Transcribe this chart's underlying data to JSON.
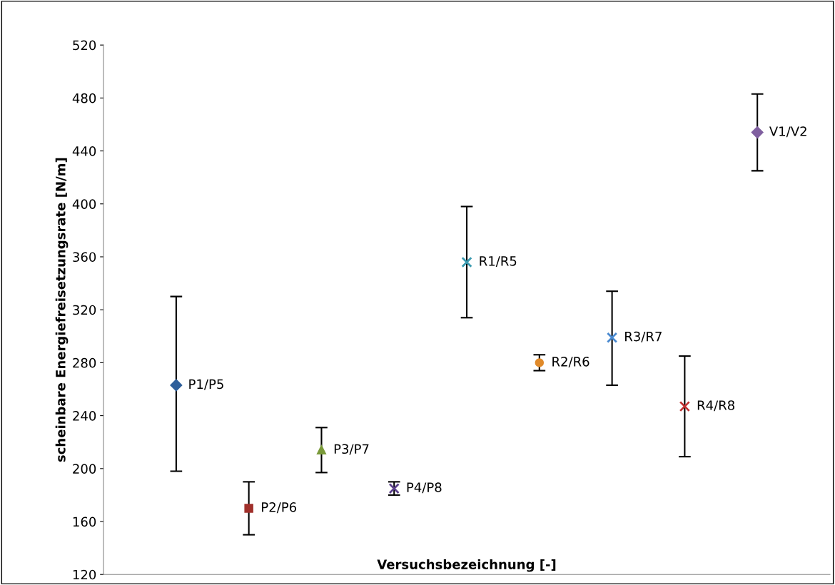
{
  "chart_data": {
    "type": "scatter",
    "xlabel": "Versuchsbezeichnung [-]",
    "ylabel": "scheinbare Energiefreisetzungsrate [N/m]",
    "categories": [
      null,
      null,
      null,
      null,
      null,
      null,
      null,
      null,
      null
    ],
    "ylim": [
      120,
      520
    ],
    "yticks": [
      120,
      160,
      200,
      240,
      280,
      320,
      360,
      400,
      440,
      480,
      520
    ],
    "grid": false,
    "legend": false,
    "tick_labels": "y",
    "series": [
      {
        "name": "P1/P5",
        "color": "#2e5f9a",
        "marker": "diamond",
        "values": [
          263,
          null,
          null,
          null,
          null,
          null,
          null,
          null,
          null
        ],
        "errors": [
          [
            198,
            330
          ],
          null,
          null,
          null,
          null,
          null,
          null,
          null,
          null
        ]
      },
      {
        "name": "P2/P6",
        "color": "#a0302b",
        "marker": "square",
        "values": [
          null,
          170,
          null,
          null,
          null,
          null,
          null,
          null,
          null
        ],
        "errors": [
          null,
          [
            150,
            190
          ],
          null,
          null,
          null,
          null,
          null,
          null,
          null
        ]
      },
      {
        "name": "P3/P7",
        "color": "#7a9a3a",
        "marker": "triangle",
        "values": [
          null,
          null,
          214,
          null,
          null,
          null,
          null,
          null,
          null
        ],
        "errors": [
          null,
          null,
          [
            197,
            231
          ],
          null,
          null,
          null,
          null,
          null,
          null
        ]
      },
      {
        "name": "P4/P8",
        "color": "#5a3f8a",
        "marker": "cross",
        "values": [
          null,
          null,
          null,
          185,
          null,
          null,
          null,
          null,
          null
        ],
        "errors": [
          null,
          null,
          null,
          [
            180,
            190
          ],
          null,
          null,
          null,
          null,
          null
        ]
      },
      {
        "name": "R1/R5",
        "color": "#3a9ab0",
        "marker": "cross",
        "values": [
          null,
          null,
          null,
          null,
          356,
          null,
          null,
          null,
          null
        ],
        "errors": [
          null,
          null,
          null,
          null,
          [
            314,
            398
          ],
          null,
          null,
          null,
          null
        ]
      },
      {
        "name": "R2/R6",
        "color": "#e08a2a",
        "marker": "circle",
        "values": [
          null,
          null,
          null,
          null,
          null,
          280,
          null,
          null,
          null
        ],
        "errors": [
          null,
          null,
          null,
          null,
          null,
          [
            274,
            286
          ],
          null,
          null,
          null
        ]
      },
      {
        "name": "R3/R7",
        "color": "#4a8ad0",
        "marker": "cross",
        "values": [
          null,
          null,
          null,
          null,
          null,
          null,
          299,
          null,
          null
        ],
        "errors": [
          null,
          null,
          null,
          null,
          null,
          null,
          [
            263,
            334
          ],
          null,
          null
        ]
      },
      {
        "name": "R4/R8",
        "color": "#c03030",
        "marker": "cross",
        "values": [
          null,
          null,
          null,
          null,
          null,
          null,
          null,
          247,
          null
        ],
        "errors": [
          null,
          null,
          null,
          null,
          null,
          null,
          null,
          [
            209,
            285
          ],
          null
        ]
      },
      {
        "name": "V1/V2",
        "color": "#8060a0",
        "marker": "diamond",
        "values": [
          null,
          null,
          null,
          null,
          null,
          null,
          null,
          null,
          454
        ],
        "errors": [
          null,
          null,
          null,
          null,
          null,
          null,
          null,
          null,
          [
            425,
            483
          ]
        ]
      }
    ]
  }
}
